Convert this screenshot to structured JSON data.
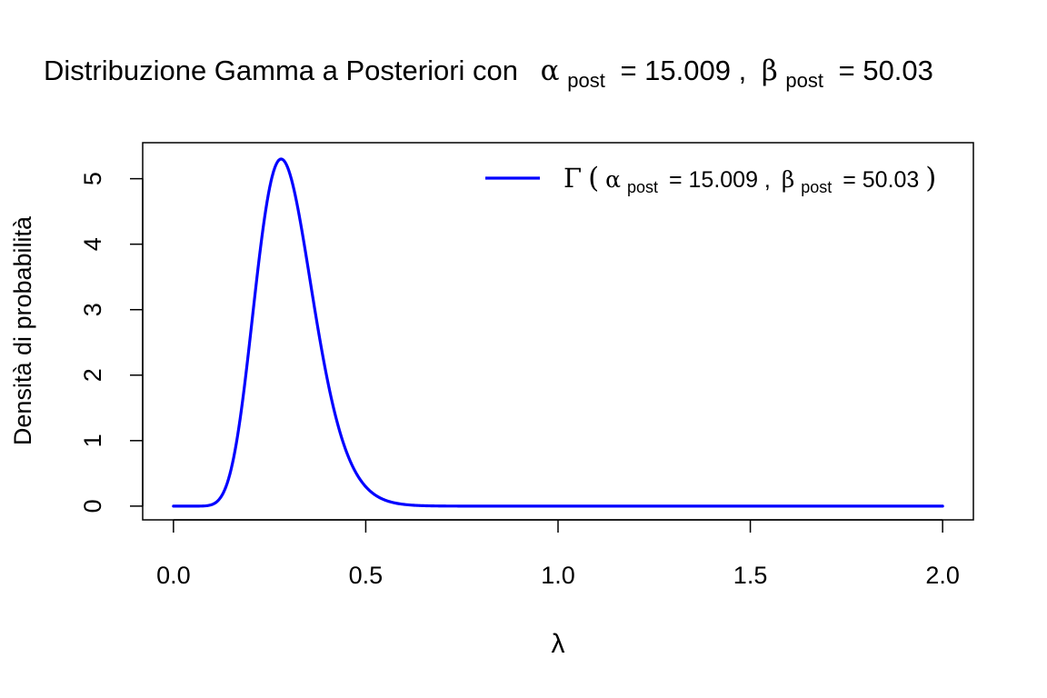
{
  "chart_data": {
    "type": "line",
    "title_prefix": "Distribuzione Gamma a Posteriori con",
    "title_alpha_sym": "α",
    "title_alpha_sub": "post",
    "title_alpha_val": "= 15.009 ,",
    "title_beta_sym": "β",
    "title_beta_sub": "post",
    "title_beta_val": "= 50.03",
    "xlabel": "λ",
    "ylabel": "Densità di probabilità",
    "xlim": [
      -0.08,
      2.08
    ],
    "ylim": [
      -0.21,
      5.55
    ],
    "x_ticks": [
      0,
      0.5,
      1,
      1.5,
      2
    ],
    "x_tick_labels": [
      "0.0",
      "0.5",
      "1.0",
      "1.5",
      "2.0"
    ],
    "y_ticks": [
      0,
      1,
      2,
      3,
      4,
      5
    ],
    "y_tick_labels": [
      "0",
      "1",
      "2",
      "3",
      "4",
      "5"
    ],
    "grid": false,
    "legend_position": "top-right",
    "series": [
      {
        "legend_gamma": "Γ",
        "legend_open": "(",
        "legend_alpha_sym": "α",
        "legend_alpha_sub": "post",
        "legend_alpha_val": "= 15.009 ,",
        "legend_beta_sym": "β",
        "legend_beta_sub": "post",
        "legend_beta_val": "= 50.03",
        "legend_close": ")",
        "color": "#0000ff",
        "shape": 15.009,
        "rate": 50.03,
        "x_range": [
          0,
          2
        ]
      }
    ]
  }
}
